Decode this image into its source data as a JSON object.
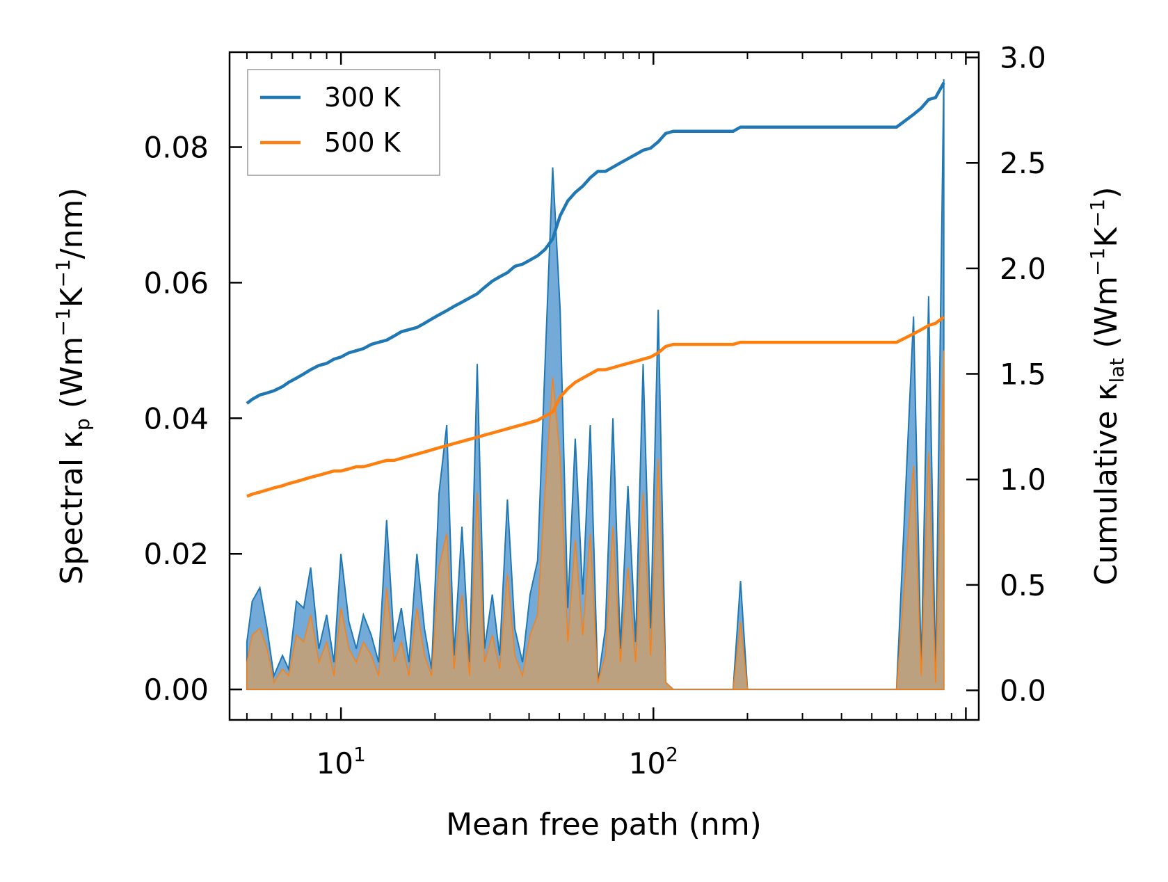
{
  "chart_data": {
    "type": "line",
    "title": "",
    "xlabel": "Mean free path (nm)",
    "ylabel_left": {
      "prefix": "Spectral κ",
      "sub": "p",
      "mid1": " (Wm",
      "sup1": "−1",
      "mid2": "K",
      "sup2": "−1",
      "suffix": "/nm)"
    },
    "ylabel_right": {
      "prefix": "Cumulative κ",
      "sub": "lat",
      "mid1": " (Wm",
      "sup1": "−1",
      "mid2": "K",
      "sup2": "−1",
      "suffix": ")"
    },
    "xscale": "log",
    "xlim": [
      4.4,
      1100
    ],
    "ylim_left": [
      -0.0045,
      0.094
    ],
    "ylim_right": [
      -0.14,
      3.025
    ],
    "x_ticks": [
      {
        "value": 10,
        "base": "10",
        "exp": "1"
      },
      {
        "value": 100,
        "base": "10",
        "exp": "2"
      }
    ],
    "y_ticks_left": [
      "0.00",
      "0.02",
      "0.04",
      "0.06",
      "0.08"
    ],
    "y_ticks_left_values": [
      0,
      0.02,
      0.04,
      0.06,
      0.08
    ],
    "y_ticks_right": [
      "0.0",
      "0.5",
      "1.0",
      "1.5",
      "2.0",
      "2.5",
      "3.0"
    ],
    "y_ticks_right_values": [
      0,
      0.5,
      1.0,
      1.5,
      2.0,
      2.5,
      3.0
    ],
    "legend": {
      "position": "top-left",
      "entries": [
        "300 K",
        "500 K"
      ]
    },
    "colors": {
      "s300": "#1f77b4",
      "s500": "#ff7f0e",
      "fill300": "#5b9bd0",
      "fill500": "#c49a6c"
    },
    "x": [
      5.0,
      5.2,
      5.5,
      5.8,
      6.1,
      6.5,
      6.8,
      7.2,
      7.6,
      8.0,
      8.5,
      9.0,
      9.5,
      10.0,
      10.6,
      11.2,
      11.8,
      12.5,
      13.2,
      14.0,
      14.8,
      15.6,
      16.5,
      17.5,
      18.5,
      19.5,
      20.6,
      21.8,
      23.0,
      24.4,
      25.8,
      27.3,
      28.8,
      30.5,
      32.2,
      34.1,
      36.0,
      38.1,
      40.3,
      42.6,
      45.0,
      47.6,
      50.3,
      53.2,
      56.2,
      59.4,
      62.8,
      66.4,
      70.2,
      74.2,
      78.4,
      82.9,
      87.7,
      92.7,
      98.0,
      103.6,
      109.5,
      115.8,
      122.4,
      129.4,
      150,
      180,
      190,
      200,
      250,
      300,
      400,
      500,
      600,
      680,
      720,
      760,
      800,
      850
    ],
    "series": [
      {
        "name": "300 K",
        "spectral": [
          0.007,
          0.013,
          0.015,
          0.009,
          0.002,
          0.005,
          0.003,
          0.013,
          0.012,
          0.018,
          0.006,
          0.011,
          0.004,
          0.02,
          0.01,
          0.006,
          0.011,
          0.008,
          0.004,
          0.025,
          0.007,
          0.012,
          0.004,
          0.02,
          0.009,
          0.003,
          0.029,
          0.039,
          0.005,
          0.024,
          0.004,
          0.048,
          0.006,
          0.014,
          0.005,
          0.028,
          0.009,
          0.004,
          0.014,
          0.019,
          0.048,
          0.077,
          0.056,
          0.012,
          0.037,
          0.014,
          0.039,
          0.001,
          0.009,
          0.04,
          0.006,
          0.03,
          0.007,
          0.048,
          0.009,
          0.056,
          0.001,
          0.0,
          0.0,
          0.0,
          0.0,
          0.0,
          0.016,
          0.0,
          0.0,
          0.0,
          0.0,
          0.0,
          0.0,
          0.055,
          0.003,
          0.058,
          0.002,
          0.09
        ],
        "cumulative": [
          1.36,
          1.38,
          1.4,
          1.41,
          1.42,
          1.44,
          1.46,
          1.48,
          1.5,
          1.52,
          1.54,
          1.55,
          1.57,
          1.58,
          1.6,
          1.61,
          1.62,
          1.64,
          1.65,
          1.66,
          1.68,
          1.7,
          1.71,
          1.72,
          1.74,
          1.76,
          1.78,
          1.8,
          1.82,
          1.84,
          1.86,
          1.88,
          1.91,
          1.94,
          1.96,
          1.98,
          2.01,
          2.02,
          2.04,
          2.06,
          2.09,
          2.14,
          2.25,
          2.32,
          2.36,
          2.39,
          2.43,
          2.46,
          2.46,
          2.48,
          2.5,
          2.52,
          2.54,
          2.56,
          2.57,
          2.6,
          2.64,
          2.65,
          2.65,
          2.65,
          2.65,
          2.65,
          2.67,
          2.67,
          2.67,
          2.67,
          2.67,
          2.67,
          2.67,
          2.73,
          2.76,
          2.8,
          2.81,
          2.88
        ]
      },
      {
        "name": "500 K",
        "spectral": [
          0.004,
          0.008,
          0.009,
          0.006,
          0.001,
          0.003,
          0.002,
          0.008,
          0.007,
          0.011,
          0.004,
          0.007,
          0.002,
          0.012,
          0.006,
          0.004,
          0.007,
          0.005,
          0.002,
          0.015,
          0.004,
          0.007,
          0.002,
          0.012,
          0.005,
          0.002,
          0.018,
          0.023,
          0.003,
          0.014,
          0.002,
          0.029,
          0.004,
          0.008,
          0.003,
          0.017,
          0.005,
          0.002,
          0.008,
          0.011,
          0.029,
          0.046,
          0.034,
          0.007,
          0.022,
          0.008,
          0.023,
          0.001,
          0.005,
          0.024,
          0.004,
          0.018,
          0.004,
          0.029,
          0.005,
          0.034,
          0.001,
          0.0,
          0.0,
          0.0,
          0.0,
          0.0,
          0.01,
          0.0,
          0.0,
          0.0,
          0.0,
          0.0,
          0.0,
          0.033,
          0.002,
          0.035,
          0.001,
          0.05
        ],
        "cumulative": [
          0.92,
          0.93,
          0.94,
          0.95,
          0.96,
          0.97,
          0.98,
          0.99,
          1.0,
          1.01,
          1.02,
          1.03,
          1.04,
          1.04,
          1.05,
          1.06,
          1.06,
          1.07,
          1.08,
          1.09,
          1.09,
          1.1,
          1.11,
          1.12,
          1.13,
          1.14,
          1.15,
          1.16,
          1.17,
          1.18,
          1.19,
          1.2,
          1.21,
          1.22,
          1.23,
          1.24,
          1.25,
          1.26,
          1.27,
          1.28,
          1.3,
          1.32,
          1.39,
          1.43,
          1.46,
          1.48,
          1.5,
          1.52,
          1.52,
          1.53,
          1.54,
          1.55,
          1.56,
          1.57,
          1.58,
          1.6,
          1.63,
          1.64,
          1.64,
          1.64,
          1.64,
          1.64,
          1.65,
          1.65,
          1.65,
          1.65,
          1.65,
          1.65,
          1.65,
          1.69,
          1.71,
          1.73,
          1.74,
          1.77
        ]
      }
    ]
  }
}
